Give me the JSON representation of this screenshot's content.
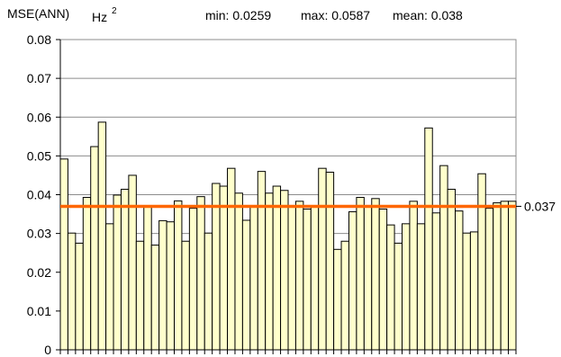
{
  "chart_data": {
    "type": "bar",
    "ylabel": "MSE(ANN)",
    "yunit_base": "Hz",
    "yunit_exp": "2",
    "stats": {
      "min": "min: 0.0259",
      "max": "max: 0.0587",
      "mean": "mean: 0.038"
    },
    "ylim": [
      0,
      0.08
    ],
    "yticks": [
      "0",
      "0.01",
      "0.02",
      "0.03",
      "0.04",
      "0.05",
      "0.06",
      "0.07",
      "0.08"
    ],
    "grid": true,
    "bar_color": "#FFFFCC",
    "bar_edge": "#000000",
    "ref_line": {
      "value": 0.037,
      "label": "0.037",
      "color": "#FF6600"
    },
    "values": [
      0.0492,
      0.0301,
      0.0275,
      0.0393,
      0.0524,
      0.0587,
      0.0325,
      0.0399,
      0.0414,
      0.045,
      0.028,
      0.0372,
      0.027,
      0.0333,
      0.033,
      0.0384,
      0.028,
      0.0365,
      0.0395,
      0.0301,
      0.0429,
      0.0422,
      0.0468,
      0.0404,
      0.0334,
      0.0368,
      0.046,
      0.0404,
      0.0422,
      0.0411,
      0.037,
      0.0383,
      0.0363,
      0.0372,
      0.0468,
      0.0458,
      0.0259,
      0.028,
      0.0356,
      0.0393,
      0.0372,
      0.039,
      0.0363,
      0.0322,
      0.0275,
      0.0325,
      0.0383,
      0.0325,
      0.0572,
      0.0353,
      0.0475,
      0.0414,
      0.0358,
      0.0301,
      0.0304,
      0.0454,
      0.0365,
      0.0379,
      0.0383,
      0.0383
    ]
  }
}
